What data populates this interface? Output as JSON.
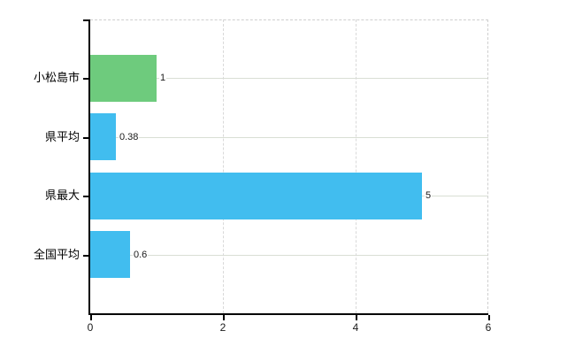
{
  "chart": {
    "background_color": "#ffffff",
    "axis_color": "#000000",
    "grid_horizontal_color": "#d9ded4",
    "grid_vertical_color": "#d9d9d9",
    "frame_dash_color": "#cfcfcf",
    "text_color": "#000000"
  },
  "chart_data": {
    "type": "bar",
    "orientation": "horizontal",
    "title": "",
    "xlabel": "",
    "ylabel": "",
    "categories": [
      "小松島市",
      "県平均",
      "県最大",
      "全国平均"
    ],
    "values": [
      1,
      0.38,
      5,
      0.6
    ],
    "value_labels": [
      "1",
      "0.38",
      "5",
      "0.6"
    ],
    "bar_colors": [
      "#6ecb7d",
      "#41bdef",
      "#41bdef",
      "#41bdef"
    ],
    "xlim": [
      0,
      6
    ],
    "xticks": [
      0,
      2,
      4,
      6
    ],
    "xtick_labels": [
      "0",
      "2",
      "4",
      "6"
    ],
    "grid": true,
    "legend": false
  }
}
